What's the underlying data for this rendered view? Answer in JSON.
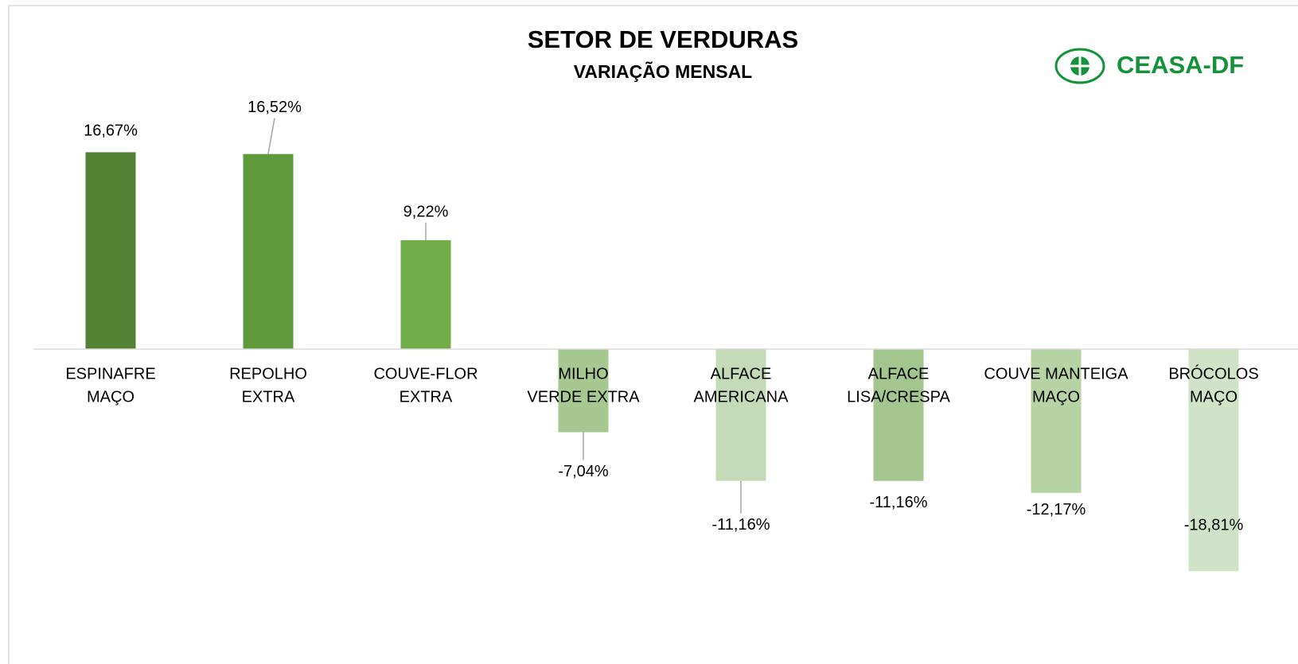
{
  "chart_data": {
    "type": "bar",
    "title": "SETOR DE VERDURAS",
    "subtitle": "VARIAÇÃO MENSAL",
    "logo": "CEASA-DF",
    "categories": [
      [
        "ESPINAFRE",
        "MAÇO"
      ],
      [
        "REPOLHO",
        "EXTRA"
      ],
      [
        "COUVE-FLOR",
        "EXTRA"
      ],
      [
        "MILHO",
        "VERDE EXTRA"
      ],
      [
        "ALFACE",
        "AMERICANA"
      ],
      [
        "ALFACE",
        "LISA/CRESPA"
      ],
      [
        "COUVE MANTEIGA",
        "MAÇO"
      ],
      [
        "BRÓCOLOS",
        "MAÇO"
      ]
    ],
    "values": [
      16.67,
      16.52,
      9.22,
      -7.04,
      -11.16,
      -11.16,
      -12.17,
      -18.81
    ],
    "value_labels": [
      "16,67%",
      "16,52%",
      "9,22%",
      "-7,04%",
      "-11,16%",
      "-11,16%",
      "-12,17%",
      "-18,81%"
    ],
    "colors": [
      "#548235",
      "#5f9a3c",
      "#70ad47",
      "#a6c991",
      "#c5dbb8",
      "#a3c58e",
      "#b6d4a3",
      "#d1e3c6"
    ]
  }
}
